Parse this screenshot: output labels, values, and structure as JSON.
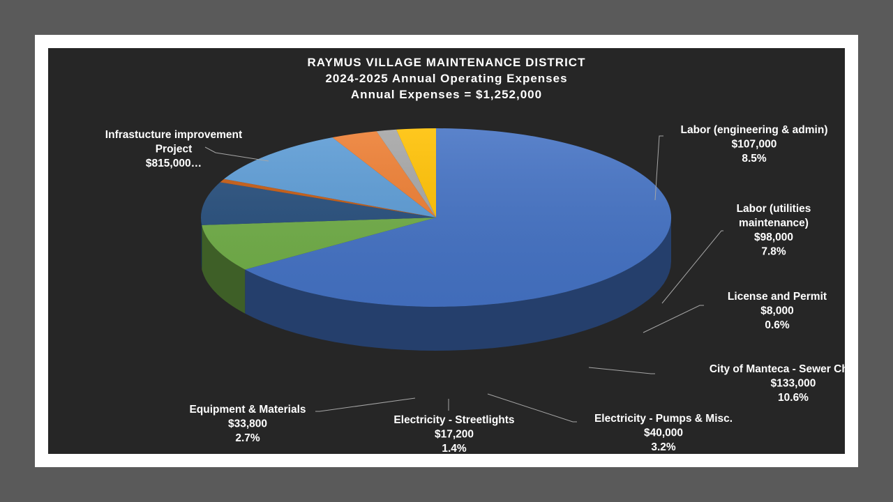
{
  "chart_data": {
    "type": "pie",
    "title": "RAYMUS VILLAGE MAINTENANCE DISTRICT",
    "subtitle": "2024-2025 Annual Operating Expenses",
    "subtitle2": "Annual Expenses = $1,252,000",
    "slices": [
      {
        "key": "infra",
        "label_lines": [
          "Infrastucture improvement",
          "Project",
          "$815,000…"
        ],
        "value": 815000,
        "percent": 65.1,
        "color": "#4472c4"
      },
      {
        "key": "labor-eng",
        "label_lines": [
          "Labor (engineering & admin)",
          "$107,000",
          "8.5%"
        ],
        "value": 107000,
        "percent": 8.5,
        "color": "#70ad47"
      },
      {
        "key": "labor-util",
        "label_lines": [
          "Labor (utilities",
          "maintenance)",
          "$98,000",
          "7.8%"
        ],
        "value": 98000,
        "percent": 7.8,
        "color": "#264e7c"
      },
      {
        "key": "license",
        "label_lines": [
          "License and Permit",
          "$8,000",
          "0.6%"
        ],
        "value": 8000,
        "percent": 0.6,
        "color": "#c55a11"
      },
      {
        "key": "sewer",
        "label_lines": [
          "City of Manteca - Sewer Charges",
          "$133,000",
          "10.6%"
        ],
        "value": 133000,
        "percent": 10.6,
        "color": "#5b9bd5"
      },
      {
        "key": "pumps",
        "label_lines": [
          "Electricity - Pumps & Misc.",
          "$40,000",
          "3.2%"
        ],
        "value": 40000,
        "percent": 3.2,
        "color": "#ed7d31"
      },
      {
        "key": "streetlights",
        "label_lines": [
          "Electricity - Streetlights",
          "$17,200",
          "1.4%"
        ],
        "value": 17200,
        "percent": 1.4,
        "color": "#a5a5a5"
      },
      {
        "key": "equipment",
        "label_lines": [
          "Equipment & Materials",
          "$33,800",
          "2.7%"
        ],
        "value": 33800,
        "percent": 2.7,
        "color": "#ffc000"
      }
    ],
    "legend": "none"
  }
}
